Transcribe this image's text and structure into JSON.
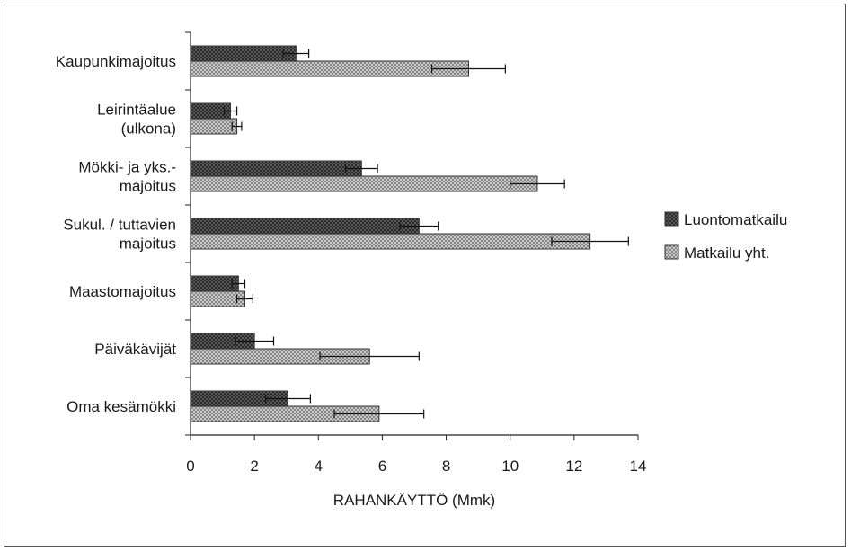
{
  "chart_data": {
    "type": "bar",
    "orientation": "horizontal",
    "categories": [
      [
        "Kaupunkimajoitus"
      ],
      [
        "Leirintäalue",
        "(ulkona)"
      ],
      [
        "Mökki- ja yks.-",
        "majoitus"
      ],
      [
        "Sukul. / tuttavien",
        "majoitus"
      ],
      [
        "Maastomajoitus"
      ],
      [
        "Päiväkävijät"
      ],
      [
        "Oma kesämökki"
      ]
    ],
    "series": [
      {
        "name": "Luontomatkailu",
        "color": "#555555",
        "pattern": "dark-crosshatch",
        "values": [
          3.3,
          1.25,
          5.35,
          7.15,
          1.5,
          2.0,
          3.05
        ],
        "errors": [
          0.4,
          0.2,
          0.5,
          0.6,
          0.2,
          0.6,
          0.7
        ]
      },
      {
        "name": "Matkailu yht.",
        "color": "#bbbbbb",
        "pattern": "light-crosshatch",
        "values": [
          8.7,
          1.45,
          10.85,
          12.5,
          1.7,
          5.6,
          5.9
        ],
        "errors": [
          1.15,
          0.15,
          0.85,
          1.2,
          0.25,
          1.55,
          1.4
        ]
      }
    ],
    "xlabel": "RAHANKÄYTTÖ (Mmk)",
    "xlim": [
      0,
      14
    ],
    "xticks": [
      "0",
      "2",
      "4",
      "6",
      "8",
      "10",
      "12",
      "14"
    ],
    "legend_position": "right",
    "grid": false
  }
}
